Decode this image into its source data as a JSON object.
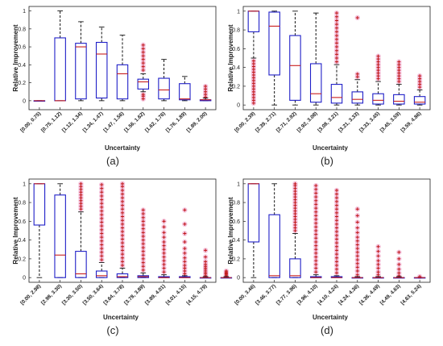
{
  "chart_data": [
    {
      "type": "box",
      "panel_label": "(a)",
      "ylabel": "Relative Improvement",
      "xlabel": "Uncertainty",
      "ylim": [
        -0.1,
        1.05
      ],
      "yticks": [
        0,
        0.2,
        0.4,
        0.6,
        0.8,
        1
      ],
      "categories": [
        "[0.00, 0.75)",
        "[0.75, 1.12)",
        "[1.12, 1.34)",
        "[1.34, 1.47)",
        "[1.47, 1.56)",
        "[1.56, 1.62)",
        "[1.62, 1.76)",
        "[1.76, 1.89)",
        "[1.89, 2.00)"
      ],
      "boxes": [
        {
          "whisker_low": 0,
          "q1": 0,
          "median": 0,
          "q3": 0,
          "whisker_high": 0,
          "outliers": []
        },
        {
          "whisker_low": 0,
          "q1": 0,
          "median": 0,
          "q3": 0.7,
          "whisker_high": 1.0,
          "outliers": []
        },
        {
          "whisker_low": 0,
          "q1": 0.02,
          "median": 0.6,
          "q3": 0.64,
          "whisker_high": 0.88,
          "outliers": []
        },
        {
          "whisker_low": 0,
          "q1": 0.03,
          "median": 0.52,
          "q3": 0.65,
          "whisker_high": 0.82,
          "outliers": []
        },
        {
          "whisker_low": 0,
          "q1": 0.02,
          "median": 0.3,
          "q3": 0.4,
          "whisker_high": 0.73,
          "outliers": []
        },
        {
          "whisker_low": 0.1,
          "q1": 0.13,
          "median": 0.21,
          "q3": 0.24,
          "whisker_high": 0.3,
          "outliers": [
            0.34,
            0.38,
            0.42,
            0.46,
            0.5,
            0.54,
            0.58,
            0.62,
            0.02,
            0.05,
            0.07
          ]
        },
        {
          "whisker_low": 0,
          "q1": 0.02,
          "median": 0.12,
          "q3": 0.25,
          "whisker_high": 0.46,
          "outliers": []
        },
        {
          "whisker_low": 0,
          "q1": 0.01,
          "median": 0.02,
          "q3": 0.19,
          "whisker_high": 0.27,
          "outliers": []
        },
        {
          "whisker_low": 0,
          "q1": 0.0,
          "median": 0.01,
          "q3": 0.01,
          "whisker_high": 0.03,
          "outliers": [
            0.04,
            0.07,
            0.1,
            0.13,
            0.16
          ]
        }
      ]
    },
    {
      "type": "box",
      "panel_label": "(b)",
      "ylabel": "Relative Improvement",
      "xlabel": "Uncertainty",
      "ylim": [
        -0.05,
        1.05
      ],
      "yticks": [
        0,
        0.2,
        0.4,
        0.6,
        0.8,
        1
      ],
      "categories": [
        "[0.00, 2.39)",
        "[2.39, 2.71)",
        "[2.71, 2.92)",
        "[2.92, 3.08)",
        "[3.08, 3.21)",
        "[3.21, 3.33)",
        "[3.33, 3.45)",
        "[3.45, 3.59)",
        "[3.59, 4.86)"
      ],
      "boxes": [
        {
          "whisker_low": 0.5,
          "q1": 0.78,
          "median": 1.0,
          "q3": 1.0,
          "whisker_high": 1.0,
          "outliers": [
            0.02,
            0.05,
            0.08,
            0.11,
            0.14,
            0.17,
            0.2,
            0.23,
            0.26,
            0.29,
            0.32,
            0.35,
            0.38,
            0.41,
            0.44,
            0.47
          ]
        },
        {
          "whisker_low": 0,
          "q1": 0.32,
          "median": 0.84,
          "q3": 0.99,
          "whisker_high": 1.0,
          "outliers": []
        },
        {
          "whisker_low": 0,
          "q1": 0.05,
          "median": 0.42,
          "q3": 0.74,
          "whisker_high": 1.0,
          "outliers": []
        },
        {
          "whisker_low": 0,
          "q1": 0.03,
          "median": 0.12,
          "q3": 0.44,
          "whisker_high": 0.98,
          "outliers": []
        },
        {
          "whisker_low": 0,
          "q1": 0.02,
          "median": 0.08,
          "q3": 0.22,
          "whisker_high": 0.43,
          "outliers": [
            0.46,
            0.5,
            0.54,
            0.58,
            0.62,
            0.66,
            0.7,
            0.74,
            0.78,
            0.82,
            0.86,
            0.9,
            0.94,
            0.98
          ]
        },
        {
          "whisker_low": 0,
          "q1": 0.02,
          "median": 0.06,
          "q3": 0.14,
          "whisker_high": 0.27,
          "outliers": [
            0.3,
            0.33,
            0.93
          ]
        },
        {
          "whisker_low": 0,
          "q1": 0.01,
          "median": 0.05,
          "q3": 0.12,
          "whisker_high": 0.25,
          "outliers": [
            0.28,
            0.31,
            0.34,
            0.37,
            0.4,
            0.43,
            0.46,
            0.49,
            0.52
          ]
        },
        {
          "whisker_low": 0,
          "q1": 0.01,
          "median": 0.04,
          "q3": 0.11,
          "whisker_high": 0.22,
          "outliers": [
            0.25,
            0.28,
            0.31,
            0.34,
            0.37,
            0.4,
            0.43,
            0.46
          ]
        },
        {
          "whisker_low": 0,
          "q1": 0.01,
          "median": 0.03,
          "q3": 0.09,
          "whisker_high": 0.16,
          "outliers": [
            0.19,
            0.22,
            0.25,
            0.28,
            0.31
          ]
        }
      ]
    },
    {
      "type": "box",
      "panel_label": "(c)",
      "ylabel": "Relative Improvement",
      "xlabel": "Uncertainty",
      "ylim": [
        -0.05,
        1.05
      ],
      "yticks": [
        0,
        0.2,
        0.4,
        0.6,
        0.8,
        1
      ],
      "categories": [
        "[0.00, 2.98)",
        "[2.98, 3.30)",
        "[3.30, 3.50)",
        "[3.50, 3.64)",
        "[3.64, 3.78)",
        "[3.78, 3.89)",
        "[3.89, 4.01)",
        "[4.01, 4.15)",
        "[4.15, 4.79)"
      ],
      "boxes": [
        {
          "whisker_low": 0,
          "q1": 0.56,
          "median": 1.0,
          "q3": 1.0,
          "whisker_high": 1.0,
          "outliers": []
        },
        {
          "whisker_low": 0,
          "q1": 0.0,
          "median": 0.24,
          "q3": 0.88,
          "whisker_high": 1.0,
          "outliers": []
        },
        {
          "whisker_low": 0,
          "q1": 0.0,
          "median": 0.04,
          "q3": 0.28,
          "whisker_high": 0.7,
          "outliers": [
            0.73,
            0.76,
            0.79,
            0.82,
            0.85,
            0.88,
            0.91,
            0.94,
            0.97,
            1.0
          ]
        },
        {
          "whisker_low": 0,
          "q1": 0.0,
          "median": 0.02,
          "q3": 0.07,
          "whisker_high": 0.16,
          "outliers": [
            0.19,
            0.23,
            0.27,
            0.31,
            0.35,
            0.39,
            0.43,
            0.47,
            0.51,
            0.55,
            0.59,
            0.63,
            0.67,
            0.71,
            0.75,
            0.79,
            0.83,
            0.87,
            0.91,
            0.95,
            0.99
          ]
        },
        {
          "whisker_low": 0,
          "q1": 0.0,
          "median": 0.01,
          "q3": 0.04,
          "whisker_high": 0.1,
          "outliers": [
            0.13,
            0.17,
            0.21,
            0.25,
            0.29,
            0.33,
            0.37,
            0.41,
            0.45,
            0.49,
            0.53,
            0.57,
            0.61,
            0.65,
            0.69,
            0.73,
            0.77,
            0.81,
            0.85,
            0.89,
            0.93,
            0.97,
            1.0
          ]
        },
        {
          "whisker_low": 0,
          "q1": 0.0,
          "median": 0.01,
          "q3": 0.02,
          "whisker_high": 0.05,
          "outliers": [
            0.08,
            0.12,
            0.16,
            0.2,
            0.24,
            0.28,
            0.32,
            0.36,
            0.4,
            0.44,
            0.48,
            0.52,
            0.56,
            0.6,
            0.64,
            0.68,
            0.72
          ]
        },
        {
          "whisker_low": 0,
          "q1": 0.0,
          "median": 0.0,
          "q3": 0.01,
          "whisker_high": 0.03,
          "outliers": [
            0.06,
            0.1,
            0.14,
            0.18,
            0.22,
            0.26,
            0.3,
            0.34,
            0.38,
            0.43,
            0.48,
            0.54,
            0.6
          ]
        },
        {
          "whisker_low": 0,
          "q1": 0.0,
          "median": 0.0,
          "q3": 0.01,
          "whisker_high": 0.02,
          "outliers": [
            0.04,
            0.07,
            0.1,
            0.13,
            0.17,
            0.21,
            0.26,
            0.31,
            0.38,
            0.47,
            0.57,
            0.72
          ]
        },
        {
          "whisker_low": 0,
          "q1": 0.0,
          "median": 0.0,
          "q3": 0.0,
          "whisker_high": 0.01,
          "outliers": [
            0.02,
            0.04,
            0.06,
            0.08,
            0.1,
            0.12,
            0.14,
            0.17,
            0.22,
            0.29
          ]
        },
        {
          "whisker_low": 0,
          "q1": 0.0,
          "median": 0.0,
          "q3": 0.0,
          "whisker_high": 0.01,
          "outliers": [
            0.02,
            0.03,
            0.04,
            0.05,
            0.06,
            0.07
          ]
        }
      ]
    },
    {
      "type": "box",
      "panel_label": "(d)",
      "ylabel": "Relative Improvement",
      "xlabel": "Uncertainty",
      "ylim": [
        -0.05,
        1.05
      ],
      "yticks": [
        0,
        0.2,
        0.4,
        0.6,
        0.8,
        1
      ],
      "categories": [
        "[0.00, 3.46)",
        "[3.46, 3.77)",
        "[3.77, 3.96)",
        "[3.96, 4.10)",
        "[4.10, 4.24)",
        "[4.24, 4.36)",
        "[4.36, 4.49)",
        "[4.49, 4.63)",
        "[4.63, 5.24)"
      ],
      "boxes": [
        {
          "whisker_low": 0,
          "q1": 0.38,
          "median": 1.0,
          "q3": 1.0,
          "whisker_high": 1.0,
          "outliers": []
        },
        {
          "whisker_low": 0,
          "q1": 0.0,
          "median": 0.02,
          "q3": 0.67,
          "whisker_high": 1.0,
          "outliers": []
        },
        {
          "whisker_low": 0,
          "q1": 0.0,
          "median": 0.02,
          "q3": 0.2,
          "whisker_high": 0.47,
          "outliers": [
            0.5,
            0.53,
            0.56,
            0.59,
            0.62,
            0.65,
            0.68,
            0.71,
            0.74,
            0.77,
            0.8,
            0.83,
            0.86,
            0.89,
            0.92,
            0.95,
            0.98,
            1.0
          ]
        },
        {
          "whisker_low": 0,
          "q1": 0.0,
          "median": 0.0,
          "q3": 0.01,
          "whisker_high": 0.03,
          "outliers": [
            0.06,
            0.1,
            0.14,
            0.18,
            0.22,
            0.26,
            0.3,
            0.34,
            0.38,
            0.42,
            0.46,
            0.5,
            0.54,
            0.58,
            0.62,
            0.66,
            0.7,
            0.74,
            0.78,
            0.82,
            0.86,
            0.9,
            0.94,
            0.98
          ]
        },
        {
          "whisker_low": 0,
          "q1": 0.0,
          "median": 0.0,
          "q3": 0.01,
          "whisker_high": 0.02,
          "outliers": [
            0.05,
            0.09,
            0.13,
            0.17,
            0.21,
            0.25,
            0.29,
            0.33,
            0.37,
            0.41,
            0.45,
            0.49,
            0.53,
            0.57,
            0.61,
            0.65,
            0.69,
            0.73,
            0.77,
            0.81,
            0.85,
            0.89,
            0.93
          ]
        },
        {
          "whisker_low": 0,
          "q1": 0.0,
          "median": 0.0,
          "q3": 0.0,
          "whisker_high": 0.01,
          "outliers": [
            0.03,
            0.07,
            0.11,
            0.15,
            0.19,
            0.23,
            0.27,
            0.31,
            0.35,
            0.39,
            0.43,
            0.48,
            0.53,
            0.59,
            0.66,
            0.73
          ]
        },
        {
          "whisker_low": 0,
          "q1": 0.0,
          "median": 0.0,
          "q3": 0.0,
          "whisker_high": 0.01,
          "outliers": [
            0.03,
            0.06,
            0.1,
            0.14,
            0.18,
            0.23,
            0.28,
            0.33
          ]
        },
        {
          "whisker_low": 0,
          "q1": 0.0,
          "median": 0.0,
          "q3": 0.0,
          "whisker_high": 0.01,
          "outliers": [
            0.02,
            0.05,
            0.09,
            0.14,
            0.2,
            0.27
          ]
        },
        {
          "whisker_low": 0,
          "q1": 0.0,
          "median": 0.0,
          "q3": 0.0,
          "whisker_high": 0.0,
          "outliers": [
            0.01
          ]
        }
      ]
    }
  ],
  "colors": {
    "box": "#1f1fc8",
    "median": "#c81e1e",
    "whisker": "#111111",
    "outlier": "#c01818",
    "outlier_halo": "#f2b6d6"
  }
}
